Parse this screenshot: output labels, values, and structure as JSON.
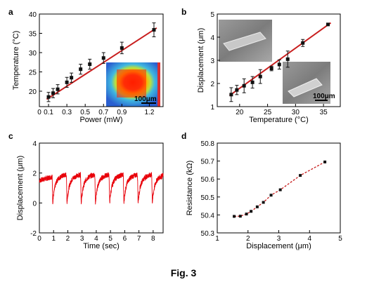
{
  "figure": {
    "caption": "Fig. 3"
  },
  "colors": {
    "fit_line": "#c81e1e",
    "trace": "#e8000a",
    "markers": "#111111",
    "axes": "#000000"
  },
  "chart_data": [
    {
      "panel": "a",
      "type": "scatter",
      "xlabel": "Power (mW)",
      "ylabel": "Temperature (°C)",
      "xlim": [
        0,
        1.35
      ],
      "ylim": [
        16,
        40
      ],
      "xticks": [
        0,
        0.1,
        0.3,
        0.5,
        0.7,
        0.9,
        1.2
      ],
      "xtick_labels": [
        "0",
        "0.1",
        "0.3",
        "0.5",
        "0.7",
        "0.9",
        "1.2"
      ],
      "yticks": [
        20,
        25,
        30,
        35,
        40
      ],
      "x": [
        0.1,
        0.15,
        0.2,
        0.3,
        0.35,
        0.45,
        0.55,
        0.7,
        0.9,
        1.25
      ],
      "y": [
        18.5,
        19.5,
        20.5,
        22.3,
        23.5,
        25.7,
        27.0,
        28.6,
        31.2,
        35.9
      ],
      "yerr": [
        1.2,
        1.2,
        1.2,
        1.3,
        1.2,
        1.3,
        1.3,
        1.4,
        1.5,
        1.8
      ],
      "fit": {
        "x": [
          0.08,
          1.28
        ],
        "y": [
          17.9,
          36.4
        ]
      },
      "inset": {
        "scale_label": "100μm"
      }
    },
    {
      "panel": "b",
      "type": "scatter",
      "xlabel": "Temperature (°C)",
      "ylabel": "Displacement (μm)",
      "xlim": [
        16,
        38
      ],
      "ylim": [
        1,
        5
      ],
      "xticks": [
        20,
        25,
        30,
        35
      ],
      "yticks": [
        1,
        2,
        3,
        4,
        5
      ],
      "x": [
        18.5,
        19.5,
        20.8,
        22.3,
        23.7,
        25.7,
        27.1,
        28.6,
        31.3,
        35.8
      ],
      "y": [
        1.52,
        1.72,
        1.9,
        2.05,
        2.3,
        2.65,
        2.82,
        3.05,
        3.75,
        4.55
      ],
      "yerr": [
        0.3,
        0.2,
        0.3,
        0.25,
        0.3,
        0.1,
        0.2,
        0.35,
        0.15,
        0.05
      ],
      "fit": {
        "x": [
          18.2,
          36.3
        ],
        "y": [
          1.48,
          4.62
        ]
      },
      "inset": {
        "scale_label": "100μm"
      }
    },
    {
      "panel": "c",
      "type": "line",
      "xlabel": "Time (sec)",
      "ylabel": "Displacement (μm)",
      "xlim": [
        0,
        8.7
      ],
      "ylim": [
        -2,
        4
      ],
      "xticks": [
        0,
        1,
        2,
        3,
        4,
        5,
        6,
        7,
        8
      ],
      "yticks": [
        -2,
        0,
        2,
        4
      ],
      "period": 1.0,
      "first_drop": 0.9,
      "plateau": 1.65,
      "minimum": 0.0
    },
    {
      "panel": "d",
      "type": "line",
      "xlabel": "Displacement (μm)",
      "ylabel": "Resistance (kΩ)",
      "xlim": [
        1,
        5
      ],
      "ylim": [
        50.3,
        50.8
      ],
      "xticks": [
        1,
        2,
        3,
        4,
        5
      ],
      "yticks": [
        50.3,
        50.4,
        50.5,
        50.6,
        50.7,
        50.8
      ],
      "x": [
        1.55,
        1.75,
        1.95,
        2.1,
        2.3,
        2.5,
        2.75,
        3.05,
        3.7,
        4.5
      ],
      "y": [
        50.392,
        50.393,
        50.405,
        50.42,
        50.445,
        50.47,
        50.51,
        50.54,
        50.62,
        50.695
      ]
    }
  ]
}
